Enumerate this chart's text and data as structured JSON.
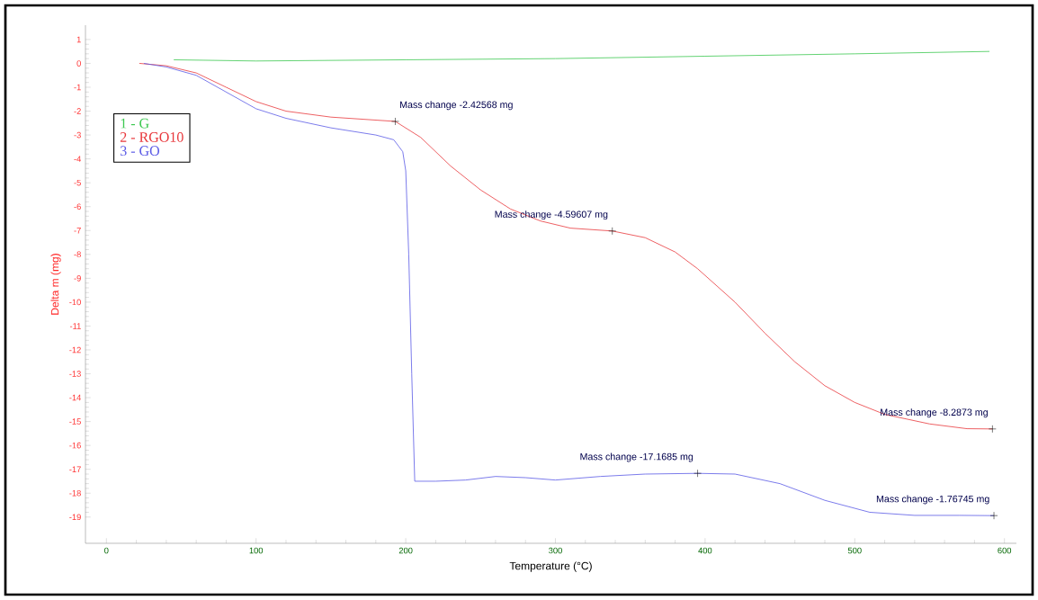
{
  "chart_data": {
    "type": "line",
    "xlabel": "Temperature (°C)",
    "ylabel": "Delta m (mg)",
    "xlim": [
      -14,
      608
    ],
    "ylim": [
      -20.1,
      1.6
    ],
    "xticks": [
      0,
      100,
      200,
      300,
      400,
      500,
      600
    ],
    "yticks": [
      1,
      0,
      -1,
      -2,
      -3,
      -4,
      -5,
      -6,
      -7,
      -8,
      -9,
      -10,
      -11,
      -12,
      -13,
      -14,
      -15,
      -16,
      -17,
      -18,
      -19
    ],
    "grid": false,
    "legend": "top left",
    "marker": "none",
    "line_style": "solid",
    "series": [
      {
        "name": "1 - G",
        "color": "#3cc850",
        "x": [
          45,
          100,
          200,
          300,
          400,
          500,
          590
        ],
        "values": [
          0.15,
          0.1,
          0.15,
          0.2,
          0.3,
          0.4,
          0.5
        ]
      },
      {
        "name": "2 - RGO10",
        "color": "#e8383c",
        "x": [
          22,
          40,
          60,
          80,
          100,
          120,
          150,
          193,
          210,
          230,
          250,
          270,
          290,
          310,
          338,
          360,
          380,
          395,
          420,
          440,
          460,
          480,
          500,
          520,
          550,
          575,
          592
        ],
        "values": [
          0,
          -0.1,
          -0.4,
          -1.0,
          -1.6,
          -2.0,
          -2.25,
          -2.43,
          -3.1,
          -4.3,
          -5.3,
          -6.1,
          -6.6,
          -6.9,
          -7.02,
          -7.3,
          -7.9,
          -8.6,
          -10,
          -11.3,
          -12.5,
          -13.5,
          -14.2,
          -14.7,
          -15.1,
          -15.3,
          -15.31
        ]
      },
      {
        "name": "3 - GO",
        "color": "#5a5ae6",
        "x": [
          25,
          40,
          60,
          80,
          100,
          120,
          150,
          180,
          192,
          198,
          200,
          202,
          204,
          206,
          220,
          240,
          260,
          280,
          300,
          330,
          360,
          395,
          420,
          450,
          480,
          510,
          540,
          570,
          593
        ],
        "values": [
          0,
          -0.15,
          -0.5,
          -1.2,
          -1.9,
          -2.3,
          -2.7,
          -3.0,
          -3.2,
          -3.7,
          -4.5,
          -8,
          -13,
          -17.5,
          -17.5,
          -17.45,
          -17.3,
          -17.35,
          -17.45,
          -17.3,
          -17.2,
          -17.17,
          -17.2,
          -17.6,
          -18.3,
          -18.8,
          -18.93,
          -18.93,
          -18.94
        ]
      }
    ],
    "annotations": [
      {
        "text": "Mass change  -2.42568 mg",
        "x": 193,
        "y": -2.43
      },
      {
        "text": "Mass change  -4.59607 mg",
        "x": 338,
        "y": -7.02
      },
      {
        "text": "Mass change  -17.1685 mg",
        "x": 395,
        "y": -17.17
      },
      {
        "text": "Mass change  -8.2873 mg",
        "x": 592,
        "y": -15.31
      },
      {
        "text": "Mass change  -1.76745 mg",
        "x": 593,
        "y": -18.94
      }
    ]
  }
}
